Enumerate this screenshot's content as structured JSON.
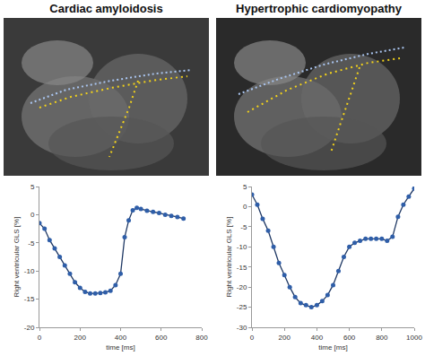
{
  "chart_data": [
    {
      "type": "line",
      "title": "Cardiac amyloidosis",
      "x_label": "time [ms]",
      "y_label": "Right ventricular GLS [%]",
      "x": [
        0,
        25,
        50,
        75,
        100,
        125,
        150,
        175,
        200,
        225,
        250,
        275,
        300,
        325,
        350,
        375,
        400,
        420,
        440,
        460,
        480,
        500,
        530,
        560,
        590,
        620,
        650,
        680,
        710
      ],
      "values": [
        -1.5,
        -2.5,
        -4.5,
        -6,
        -7.5,
        -9,
        -10.5,
        -12,
        -13,
        -13.7,
        -14,
        -14,
        -13.9,
        -13.8,
        -13.5,
        -12.5,
        -10.5,
        -4,
        -1,
        0.8,
        1.2,
        1,
        0.7,
        0.5,
        0.3,
        0,
        -0.2,
        -0.4,
        -0.7
      ],
      "color": "#2f5ea8",
      "marker": "circle",
      "line_style": "solid",
      "xlim": [
        0,
        800
      ],
      "xticks": [
        0,
        200,
        400,
        600,
        800
      ],
      "ylim": [
        -20,
        5
      ],
      "yticks": [
        -20,
        -15,
        -10,
        -5,
        0,
        5
      ],
      "grid": false
    },
    {
      "type": "line",
      "title": "Hypertrophic cardiomyopathy",
      "x_label": "time [ms]",
      "y_label": "Right ventricular GLS [%]",
      "x": [
        0,
        33,
        66,
        100,
        133,
        166,
        200,
        233,
        266,
        300,
        333,
        366,
        400,
        433,
        466,
        500,
        533,
        566,
        600,
        633,
        666,
        700,
        733,
        766,
        800,
        833,
        866,
        900,
        933,
        966,
        1000
      ],
      "values": [
        3,
        0.5,
        -3,
        -6,
        -10,
        -14,
        -17,
        -20,
        -22.5,
        -24,
        -24.5,
        -25,
        -24.5,
        -23.5,
        -22,
        -19.5,
        -16,
        -12.5,
        -10,
        -9,
        -8.5,
        -8,
        -8,
        -8,
        -8,
        -8.5,
        -7.5,
        -2.5,
        0.5,
        2.5,
        4.5
      ],
      "color": "#2f5ea8",
      "marker": "circle",
      "line_style": "solid",
      "xlim": [
        0,
        1000
      ],
      "xticks": [
        0,
        200,
        400,
        600,
        800,
        1000
      ],
      "ylim": [
        -30,
        5
      ],
      "yticks": [
        -30,
        -25,
        -20,
        -15,
        -10,
        -5,
        0,
        5
      ],
      "grid": false
    }
  ]
}
